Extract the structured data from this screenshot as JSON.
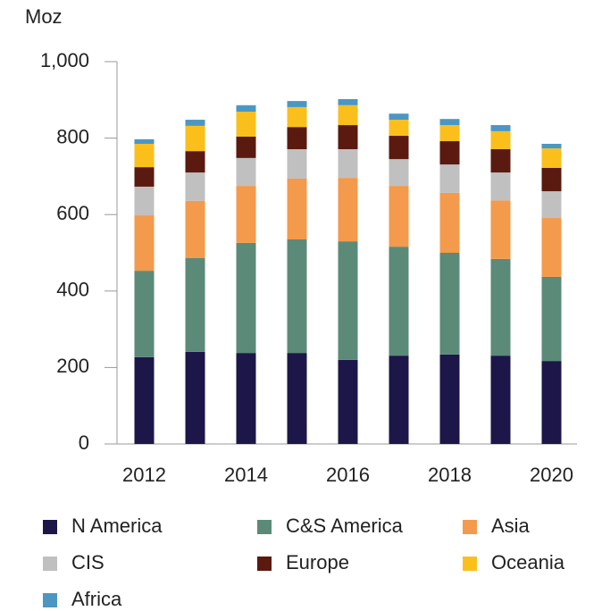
{
  "chart_data": {
    "type": "stacked_bar",
    "y_label": "Moz",
    "categories": [
      "2012",
      null,
      "2014",
      null,
      "2016",
      null,
      "2018",
      null,
      "2020"
    ],
    "series": [
      {
        "name": "N America",
        "color": "#1c1748",
        "values": [
          227,
          241,
          238,
          238,
          220,
          231,
          234,
          231,
          217
        ]
      },
      {
        "name": "C&S America",
        "color": "#5b8a78",
        "values": [
          226,
          245,
          288,
          297,
          310,
          285,
          266,
          253,
          220
        ]
      },
      {
        "name": "Asia",
        "color": "#f39a4c",
        "values": [
          145,
          150,
          149,
          159,
          166,
          159,
          157,
          153,
          154
        ]
      },
      {
        "name": "CIS",
        "color": "#c0c0c0",
        "values": [
          75,
          74,
          73,
          77,
          75,
          70,
          74,
          73,
          70
        ]
      },
      {
        "name": "Europe",
        "color": "#5a1a0f",
        "values": [
          51,
          56,
          56,
          58,
          63,
          61,
          61,
          61,
          61
        ]
      },
      {
        "name": "Oceania",
        "color": "#fbbf1c",
        "values": [
          61,
          66,
          65,
          52,
          52,
          42,
          42,
          47,
          51
        ]
      },
      {
        "name": "Africa",
        "color": "#4b97c2",
        "values": [
          12,
          16,
          17,
          16,
          16,
          16,
          16,
          16,
          12
        ]
      }
    ],
    "ylim": [
      0,
      1000
    ],
    "yticks": [
      0,
      200,
      400,
      600,
      800,
      {
        "value": 1000,
        "label": "1,000"
      }
    ],
    "legend": "bottom"
  }
}
